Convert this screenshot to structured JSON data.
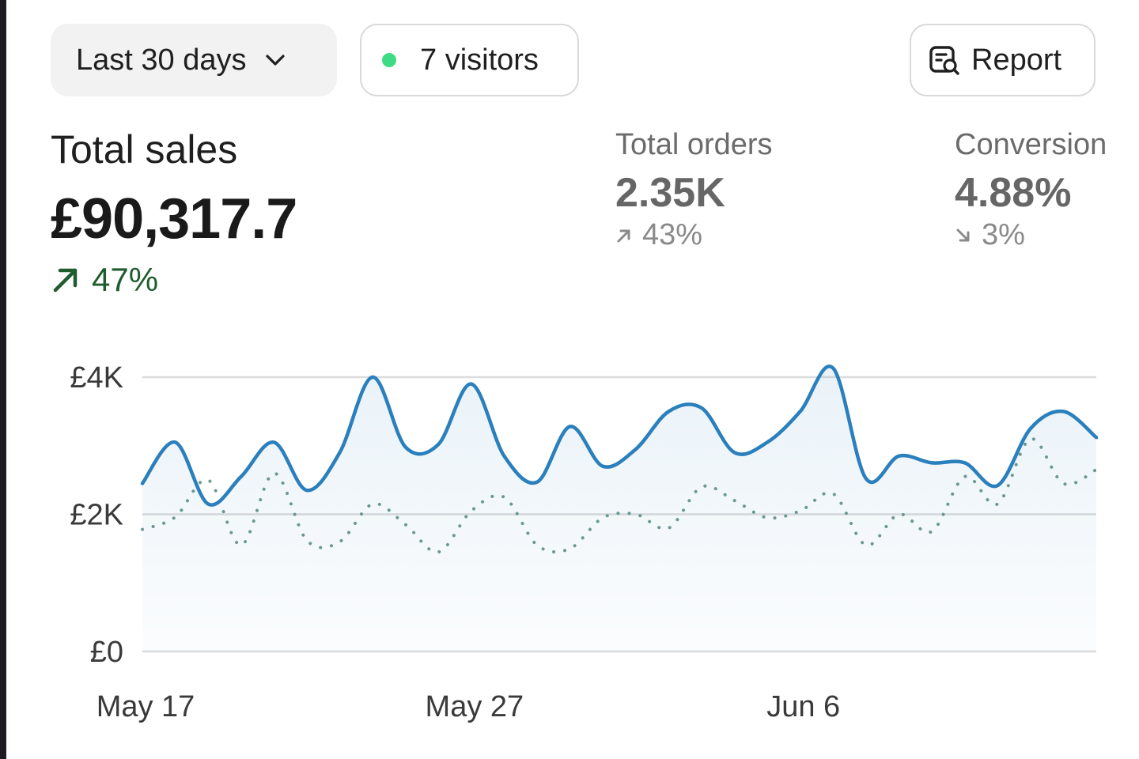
{
  "toolbar": {
    "date_range_label": "Last 30 days",
    "visitors_label": "7 visitors",
    "report_label": "Report",
    "live_dot_color": "#3ddc84",
    "icons": {
      "date_range": "chevron-down-icon",
      "visitors": "status-dot-icon",
      "report": "report-search-icon"
    }
  },
  "metrics": {
    "total_sales": {
      "title": "Total sales",
      "value": "£90,317.7",
      "change": "47%",
      "direction": "up",
      "color": "#1f5c2e"
    },
    "total_orders": {
      "title": "Total orders",
      "value": "2.35K",
      "change": "43%",
      "direction": "up"
    },
    "conversion": {
      "title": "Conversion",
      "value": "4.88%",
      "change": "3%",
      "direction": "down"
    }
  },
  "chart_data": {
    "type": "line",
    "ylim": [
      0,
      4000
    ],
    "y_ticks": [
      {
        "value": 0,
        "label": "£0"
      },
      {
        "value": 2000,
        "label": "£2K"
      },
      {
        "value": 4000,
        "label": "£4K"
      }
    ],
    "x_ticks": [
      {
        "value": 0,
        "label": "May 17"
      },
      {
        "value": 10,
        "label": "May 27"
      },
      {
        "value": 20,
        "label": "Jun 6"
      }
    ],
    "x_range": [
      0,
      29
    ],
    "grid": true,
    "series": [
      {
        "color": "#2a7fbd",
        "style": "solid",
        "fill": true,
        "values": [
          2450,
          3050,
          2150,
          2550,
          3050,
          2350,
          2900,
          4000,
          2980,
          3020,
          3900,
          2850,
          2470,
          3280,
          2700,
          2950,
          3500,
          3550,
          2900,
          3050,
          3500,
          4130,
          2520,
          2850,
          2750,
          2750,
          2420,
          3250,
          3500,
          3120
        ]
      },
      {
        "color": "#6e9a8f",
        "style": "dotted",
        "fill": false,
        "values": [
          1780,
          1960,
          2500,
          1550,
          2600,
          1620,
          1600,
          2150,
          1850,
          1450,
          2050,
          2250,
          1550,
          1500,
          1950,
          2000,
          1800,
          2400,
          2200,
          1950,
          2050,
          2300,
          1550,
          2000,
          1750,
          2550,
          2150,
          3100,
          2450,
          2650
        ]
      }
    ]
  }
}
